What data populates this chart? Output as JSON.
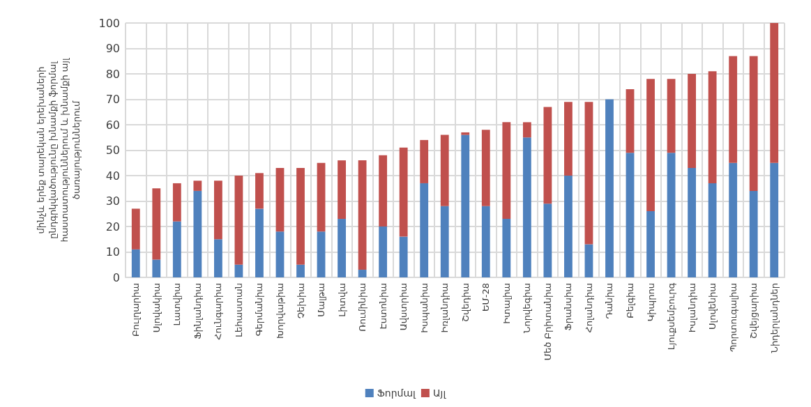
{
  "chart_data": {
    "type": "bar",
    "stacked": true,
    "ylabel": "մինչև երեք տարեկան երեխաների\nընդգրկվածությունը խնամքի ֆորմալ\nհաստատություններում և խնամքի այլ\nծառայություններում",
    "categories": [
      "Բուլղարիա",
      "Սլովակիա",
      "Լատվիա",
      "Ֆինլանդիա",
      "Հունգարիա",
      "Լեհաստան",
      "Գերմանիա",
      "Խորվաթիա",
      "Չեխիա",
      "Մալթա",
      "Լիտվա",
      "Ռումինիա",
      "Էստոնիա",
      "Ավստրիա",
      "Իսպանիա",
      "Իռլանդիա",
      "Շվեդիա",
      "ԵՄ-28",
      "Իտալիա",
      "Նորվեգիա",
      "Մեծ Բրիտանիա",
      "Ֆրանսիա",
      "Հոլանդիա",
      "Դանիա",
      "Բելգիա",
      "Կիպրոս",
      "Լյուքսեմբուրգ",
      "Իսլանդիա",
      "Սլովենիա",
      "Պորտուգալիա",
      "Շվեյցարիա",
      "Նիդերլանդներ"
    ],
    "series": [
      {
        "name": "Ֆորմալ",
        "color": "#4f81bd",
        "values": [
          11,
          7,
          22,
          34,
          15,
          5,
          27,
          18,
          5,
          18,
          23,
          3,
          20,
          16,
          37,
          28,
          56,
          28,
          23,
          55,
          29,
          40,
          13,
          70,
          49,
          26,
          49,
          43,
          37,
          45,
          34,
          45
        ]
      },
      {
        "name": "Այլ",
        "color": "#c0504d",
        "values": [
          16,
          28,
          15,
          4,
          23,
          35,
          14,
          25,
          38,
          27,
          23,
          43,
          28,
          35,
          17,
          28,
          1,
          30,
          38,
          6,
          38,
          29,
          56,
          0,
          25,
          52,
          29,
          37,
          44,
          42,
          53,
          55
        ]
      }
    ],
    "ylim": [
      0,
      100
    ],
    "yticks": [
      0,
      10,
      20,
      30,
      40,
      50,
      60,
      70,
      80,
      90,
      100
    ],
    "grid": true,
    "legend": "bottom"
  }
}
